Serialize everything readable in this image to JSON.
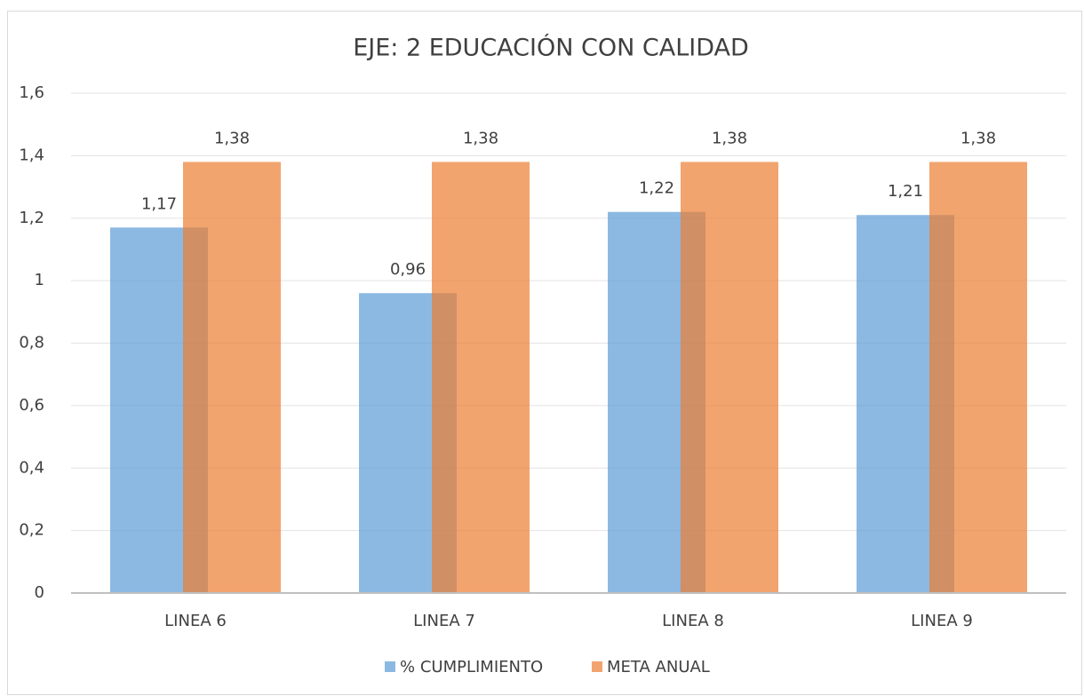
{
  "chart_data": {
    "type": "bar",
    "title": "EJE: 2 EDUCACIÓN CON CALIDAD",
    "categories": [
      "LINEA 6",
      "LINEA 7",
      "LINEA 8",
      "LINEA 9"
    ],
    "series": [
      {
        "name": "% CUMPLIMIENTO",
        "color": "#5b9bd5",
        "values": [
          1.17,
          0.96,
          1.22,
          1.21
        ],
        "value_labels": [
          "1,17",
          "0,96",
          "1,22",
          "1,21"
        ]
      },
      {
        "name": "META ANUAL",
        "color": "#ed7d31",
        "values": [
          1.38,
          1.38,
          1.38,
          1.38
        ],
        "value_labels": [
          "1,38",
          "1,38",
          "1,38",
          "1,38"
        ]
      }
    ],
    "ylim": [
      0,
      1.6
    ],
    "yticks": [
      0,
      {
        "value": 0.2,
        "label": "0,2"
      },
      {
        "value": 0.4,
        "label": "0,4"
      },
      {
        "value": 0.6,
        "label": "0,6"
      },
      {
        "value": 0.8,
        "label": "0,8"
      },
      1,
      {
        "value": 1.2,
        "label": "1,2"
      },
      {
        "value": 1.4,
        "label": "1,4"
      },
      {
        "value": 1.6,
        "label": "1,6"
      }
    ],
    "grid": true,
    "legend": "bottom"
  }
}
